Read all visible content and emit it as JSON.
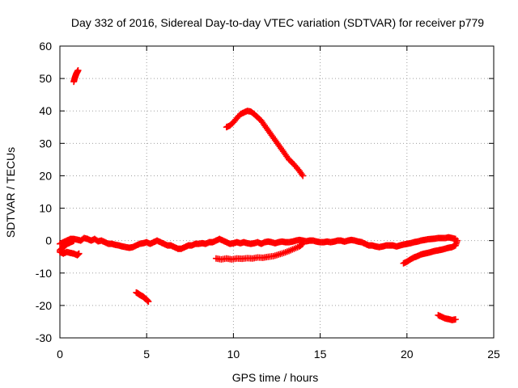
{
  "chart_data": {
    "type": "scatter",
    "title": "Day 332 of 2016, Sidereal Day-to-day VTEC variation (SDTVAR) for receiver p779",
    "xlabel": "GPS time / hours",
    "ylabel": "SDTVAR / TECUs",
    "xlim": [
      0,
      25
    ],
    "ylim": [
      -30,
      60
    ],
    "xticks": [
      0,
      5,
      10,
      15,
      20,
      25
    ],
    "yticks": [
      -30,
      -20,
      -10,
      0,
      10,
      20,
      30,
      40,
      50,
      60
    ],
    "grid": true,
    "marker": "plus",
    "series": [
      {
        "name": "sdtvar",
        "color": "#ff0000",
        "segments": [
          [
            [
              0.8,
              49.0
            ],
            [
              0.85,
              50.0
            ],
            [
              0.9,
              50.8
            ],
            [
              0.95,
              51.5
            ],
            [
              1.0,
              52.0
            ],
            [
              1.05,
              52.5
            ]
          ],
          [
            [
              0.0,
              -1.0
            ],
            [
              0.2,
              -0.5
            ],
            [
              0.4,
              0.0
            ],
            [
              0.6,
              0.5
            ],
            [
              0.8,
              0.5
            ],
            [
              1.0,
              0.3
            ],
            [
              1.2,
              0.0
            ],
            [
              1.4,
              0.8
            ],
            [
              1.6,
              0.5
            ],
            [
              1.8,
              0.0
            ],
            [
              2.0,
              0.5
            ],
            [
              2.2,
              -0.2
            ],
            [
              2.4,
              0.0
            ],
            [
              2.6,
              -0.5
            ],
            [
              2.8,
              -1.0
            ],
            [
              3.0,
              -1.0
            ],
            [
              3.2,
              -1.3
            ],
            [
              3.4,
              -1.5
            ],
            [
              3.6,
              -1.8
            ],
            [
              3.8,
              -2.0
            ],
            [
              4.0,
              -2.2
            ],
            [
              4.2,
              -2.0
            ],
            [
              4.4,
              -1.5
            ],
            [
              4.6,
              -1.0
            ],
            [
              4.8,
              -0.8
            ],
            [
              5.0,
              -0.5
            ],
            [
              5.2,
              -1.0
            ],
            [
              5.4,
              -0.5
            ],
            [
              5.6,
              0.0
            ],
            [
              5.8,
              -0.5
            ],
            [
              6.0,
              -1.0
            ],
            [
              6.2,
              -1.5
            ],
            [
              6.4,
              -1.5
            ],
            [
              6.6,
              -2.0
            ],
            [
              6.8,
              -2.5
            ],
            [
              7.0,
              -2.5
            ],
            [
              7.2,
              -2.0
            ],
            [
              7.4,
              -1.5
            ],
            [
              7.6,
              -1.5
            ],
            [
              7.8,
              -1.0
            ],
            [
              8.0,
              -1.0
            ],
            [
              8.2,
              -0.8
            ],
            [
              8.4,
              -1.0
            ],
            [
              8.6,
              -0.5
            ],
            [
              8.8,
              -0.5
            ],
            [
              9.0,
              0.0
            ],
            [
              9.2,
              0.5
            ],
            [
              9.4,
              0.0
            ],
            [
              9.6,
              -0.5
            ],
            [
              9.8,
              -1.0
            ],
            [
              10.0,
              -0.8
            ],
            [
              10.2,
              -0.5
            ],
            [
              10.4,
              -0.8
            ],
            [
              10.6,
              -0.5
            ],
            [
              10.8,
              -0.8
            ],
            [
              11.0,
              -1.0
            ],
            [
              11.2,
              -0.8
            ],
            [
              11.4,
              -0.5
            ],
            [
              11.6,
              -1.0
            ],
            [
              11.8,
              -0.5
            ],
            [
              12.0,
              -0.3
            ],
            [
              12.2,
              -0.5
            ],
            [
              12.4,
              -0.8
            ],
            [
              12.6,
              -0.5
            ],
            [
              12.8,
              -0.3
            ],
            [
              13.0,
              -0.5
            ],
            [
              13.2,
              -0.5
            ],
            [
              13.4,
              -0.3
            ],
            [
              13.6,
              0.0
            ],
            [
              13.8,
              0.2
            ],
            [
              14.0,
              0.0
            ],
            [
              14.2,
              -0.2
            ],
            [
              14.4,
              0.0
            ],
            [
              14.6,
              0.0
            ],
            [
              14.8,
              -0.3
            ],
            [
              15.0,
              -0.5
            ],
            [
              15.2,
              -0.5
            ],
            [
              15.4,
              -0.3
            ],
            [
              15.6,
              -0.5
            ],
            [
              15.8,
              -0.3
            ],
            [
              16.0,
              0.0
            ],
            [
              16.2,
              0.0
            ],
            [
              16.4,
              -0.3
            ],
            [
              16.6,
              0.0
            ],
            [
              16.8,
              0.2
            ],
            [
              17.0,
              0.0
            ],
            [
              17.2,
              -0.3
            ],
            [
              17.4,
              -0.5
            ],
            [
              17.6,
              -1.0
            ],
            [
              17.8,
              -1.5
            ],
            [
              18.0,
              -1.5
            ],
            [
              18.2,
              -1.8
            ],
            [
              18.4,
              -2.0
            ],
            [
              18.6,
              -1.8
            ],
            [
              18.8,
              -1.5
            ],
            [
              19.0,
              -1.5
            ],
            [
              19.2,
              -1.5
            ],
            [
              19.4,
              -1.8
            ],
            [
              19.6,
              -1.5
            ],
            [
              19.8,
              -1.2
            ],
            [
              20.0,
              -1.0
            ],
            [
              20.2,
              -0.8
            ],
            [
              20.4,
              -0.5
            ],
            [
              20.6,
              -0.3
            ],
            [
              20.8,
              0.0
            ],
            [
              21.0,
              0.2
            ],
            [
              21.2,
              0.4
            ],
            [
              21.4,
              0.5
            ],
            [
              21.6,
              0.6
            ],
            [
              21.8,
              0.8
            ],
            [
              22.0,
              0.8
            ],
            [
              22.2,
              0.8
            ],
            [
              22.4,
              1.0
            ],
            [
              22.6,
              0.8
            ],
            [
              22.8,
              0.5
            ]
          ],
          [
            [
              0.0,
              -3.0
            ],
            [
              0.1,
              -2.5
            ],
            [
              0.2,
              -2.0
            ],
            [
              0.3,
              -1.5
            ],
            [
              0.4,
              -1.0
            ],
            [
              0.5,
              -0.8
            ],
            [
              0.6,
              -0.5
            ],
            [
              0.7,
              -0.3
            ],
            [
              0.8,
              0.0
            ]
          ],
          [
            [
              0.0,
              -3.5
            ],
            [
              0.2,
              -4.0
            ],
            [
              0.4,
              -3.5
            ],
            [
              0.6,
              -3.8
            ],
            [
              0.8,
              -4.0
            ],
            [
              1.0,
              -4.5
            ],
            [
              1.1,
              -4.0
            ]
          ],
          [
            [
              4.4,
              -16.0
            ],
            [
              4.5,
              -16.3
            ],
            [
              4.6,
              -16.7
            ],
            [
              4.7,
              -17.0
            ],
            [
              4.8,
              -17.3
            ],
            [
              4.9,
              -17.8
            ],
            [
              5.0,
              -18.2
            ],
            [
              5.1,
              -18.8
            ]
          ],
          [
            [
              9.0,
              -5.5
            ],
            [
              9.3,
              -5.8
            ],
            [
              9.6,
              -5.5
            ],
            [
              9.9,
              -5.8
            ],
            [
              10.2,
              -5.5
            ],
            [
              10.5,
              -5.6
            ],
            [
              10.8,
              -5.4
            ],
            [
              11.1,
              -5.5
            ],
            [
              11.4,
              -5.2
            ],
            [
              11.7,
              -5.3
            ],
            [
              12.0,
              -5.0
            ],
            [
              12.3,
              -4.8
            ],
            [
              12.6,
              -4.3
            ],
            [
              12.9,
              -3.8
            ],
            [
              13.2,
              -3.2
            ],
            [
              13.5,
              -2.5
            ],
            [
              13.8,
              -1.8
            ],
            [
              14.0,
              -1.0
            ]
          ],
          [
            [
              9.6,
              35.0
            ],
            [
              9.8,
              35.5
            ],
            [
              10.0,
              36.5
            ],
            [
              10.2,
              37.8
            ],
            [
              10.4,
              39.0
            ],
            [
              10.6,
              39.5
            ],
            [
              10.8,
              40.0
            ],
            [
              11.0,
              39.8
            ],
            [
              11.2,
              39.0
            ],
            [
              11.4,
              38.0
            ],
            [
              11.6,
              37.0
            ],
            [
              11.8,
              35.5
            ],
            [
              12.0,
              34.0
            ],
            [
              12.2,
              32.5
            ],
            [
              12.4,
              31.0
            ],
            [
              12.6,
              29.5
            ],
            [
              12.8,
              28.0
            ],
            [
              13.0,
              26.5
            ],
            [
              13.2,
              25.0
            ],
            [
              13.4,
              24.0
            ],
            [
              13.6,
              22.8
            ],
            [
              13.8,
              21.5
            ],
            [
              14.0,
              20.0
            ]
          ],
          [
            [
              19.8,
              -7.0
            ],
            [
              20.0,
              -6.5
            ],
            [
              20.2,
              -5.8
            ],
            [
              20.4,
              -5.2
            ],
            [
              20.6,
              -4.8
            ],
            [
              20.8,
              -4.3
            ],
            [
              21.0,
              -4.0
            ],
            [
              21.2,
              -3.8
            ],
            [
              21.4,
              -3.5
            ],
            [
              21.6,
              -3.2
            ],
            [
              21.8,
              -3.0
            ],
            [
              22.0,
              -2.8
            ],
            [
              22.2,
              -2.5
            ],
            [
              22.4,
              -2.2
            ],
            [
              22.6,
              -2.0
            ],
            [
              22.8,
              -1.5
            ],
            [
              22.9,
              0.0
            ]
          ],
          [
            [
              21.8,
              -23.0
            ],
            [
              22.0,
              -23.5
            ],
            [
              22.2,
              -24.0
            ],
            [
              22.4,
              -24.2
            ],
            [
              22.6,
              -24.5
            ],
            [
              22.8,
              -24.3
            ]
          ]
        ]
      }
    ]
  }
}
